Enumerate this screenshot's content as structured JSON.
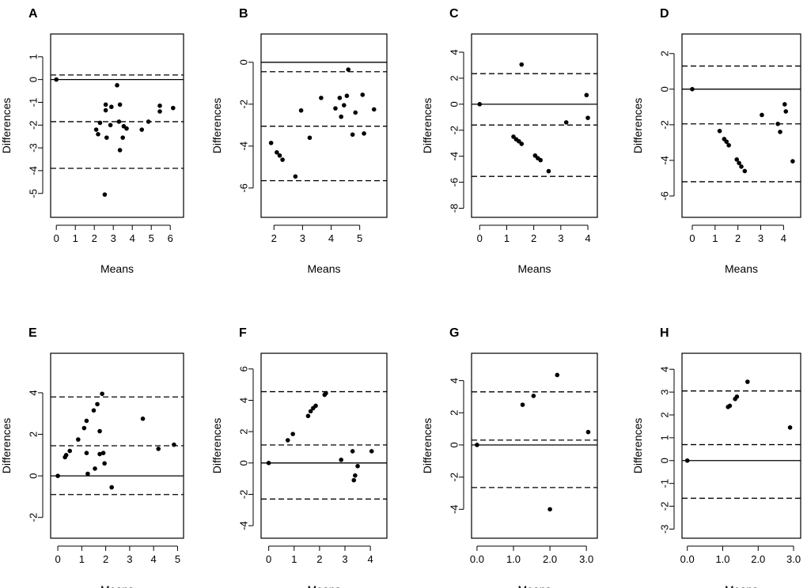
{
  "figure": {
    "colors": {
      "ink": "#000000",
      "background": "#ffffff"
    }
  },
  "chart_data": [
    {
      "panel": "A",
      "type": "scatter",
      "title": "",
      "xlabel": "Means",
      "ylabel": "Differences",
      "xlim": [
        -0.3,
        6.7
      ],
      "ylim": [
        -6.05,
        2.0
      ],
      "xticks": [
        0,
        1,
        2,
        3,
        4,
        5,
        6
      ],
      "xtick_labels": [
        "0",
        "1",
        "2",
        "3",
        "4",
        "5",
        "6"
      ],
      "yticks": [
        -5,
        -4,
        -3,
        -2,
        -1,
        0,
        1
      ],
      "ytick_labels": [
        "-5",
        "-4",
        "-3",
        "-2",
        "-1",
        "0",
        "1"
      ],
      "zero_line": 0,
      "mean_difference": -1.85,
      "limits_of_agreement": [
        -3.9,
        0.2
      ],
      "points": [
        [
          0,
          0
        ],
        [
          2.1,
          -2.2
        ],
        [
          2.2,
          -2.4
        ],
        [
          2.3,
          -1.9
        ],
        [
          2.6,
          -1.35
        ],
        [
          2.6,
          -1.1
        ],
        [
          2.65,
          -2.55
        ],
        [
          2.85,
          -2.0
        ],
        [
          2.9,
          -1.2
        ],
        [
          3.2,
          -0.25
        ],
        [
          3.3,
          -1.85
        ],
        [
          3.35,
          -3.1
        ],
        [
          3.35,
          -1.1
        ],
        [
          3.5,
          -2.55
        ],
        [
          3.55,
          -2.05
        ],
        [
          3.7,
          -2.15
        ],
        [
          4.5,
          -2.2
        ],
        [
          4.85,
          -1.85
        ],
        [
          5.45,
          -1.15
        ],
        [
          5.45,
          -1.4
        ],
        [
          6.15,
          -1.25
        ],
        [
          2.55,
          -5.05
        ]
      ]
    },
    {
      "panel": "B",
      "type": "scatter",
      "title": "",
      "xlabel": "Means",
      "ylabel": "Differences",
      "xlim": [
        1.55,
        5.95
      ],
      "ylim": [
        -7.4,
        1.35
      ],
      "xticks": [
        2,
        3,
        4,
        5
      ],
      "xtick_labels": [
        "2",
        "3",
        "4",
        "5"
      ],
      "yticks": [
        -6,
        -4,
        -2,
        0
      ],
      "ytick_labels": [
        "-6",
        "-4",
        "-2",
        "0"
      ],
      "zero_line": 0,
      "mean_difference": -3.05,
      "limits_of_agreement": [
        -5.65,
        -0.45
      ],
      "points": [
        [
          1.9,
          -3.85
        ],
        [
          2.1,
          -4.3
        ],
        [
          2.2,
          -4.45
        ],
        [
          2.3,
          -4.65
        ],
        [
          2.75,
          -5.45
        ],
        [
          2.95,
          -2.3
        ],
        [
          3.25,
          -3.6
        ],
        [
          3.65,
          -1.7
        ],
        [
          4.15,
          -2.2
        ],
        [
          4.3,
          -1.7
        ],
        [
          4.35,
          -2.6
        ],
        [
          4.45,
          -2.05
        ],
        [
          4.55,
          -1.6
        ],
        [
          4.6,
          -0.35
        ],
        [
          4.75,
          -3.45
        ],
        [
          4.85,
          -2.4
        ],
        [
          5.1,
          -1.55
        ],
        [
          5.15,
          -3.4
        ],
        [
          5.5,
          -2.25
        ]
      ]
    },
    {
      "panel": "C",
      "type": "scatter",
      "title": "",
      "xlabel": "Means",
      "ylabel": "Differences",
      "xlim": [
        -0.3,
        4.35
      ],
      "ylim": [
        -8.7,
        5.4
      ],
      "xticks": [
        0,
        1,
        2,
        3,
        4
      ],
      "xtick_labels": [
        "0",
        "1",
        "2",
        "3",
        "4"
      ],
      "yticks": [
        -8,
        -6,
        -4,
        -2,
        0,
        2,
        4
      ],
      "ytick_labels": [
        "-8",
        "-6",
        "-4",
        "-2",
        "0",
        "2",
        "4"
      ],
      "zero_line": 0,
      "mean_difference": -1.6,
      "limits_of_agreement": [
        -5.55,
        2.35
      ],
      "points": [
        [
          0,
          0
        ],
        [
          1.25,
          -2.5
        ],
        [
          1.35,
          -2.7
        ],
        [
          1.45,
          -2.85
        ],
        [
          1.55,
          -3.05
        ],
        [
          1.55,
          3.05
        ],
        [
          2.05,
          -3.95
        ],
        [
          2.15,
          -4.15
        ],
        [
          2.25,
          -4.3
        ],
        [
          2.55,
          -5.15
        ],
        [
          3.2,
          -1.4
        ],
        [
          3.95,
          0.7
        ],
        [
          4.0,
          -1.05
        ]
      ]
    },
    {
      "panel": "D",
      "type": "scatter",
      "title": "",
      "xlabel": "Means",
      "ylabel": "Differences",
      "xlim": [
        -0.45,
        4.75
      ],
      "ylim": [
        -7.2,
        3.1
      ],
      "xticks": [
        0,
        1,
        2,
        3,
        4
      ],
      "xtick_labels": [
        "0",
        "1",
        "2",
        "3",
        "4"
      ],
      "yticks": [
        -6,
        -4,
        -2,
        0,
        2
      ],
      "ytick_labels": [
        "-6",
        "-4",
        "-2",
        "0",
        "2"
      ],
      "zero_line": 0,
      "mean_difference": -1.95,
      "limits_of_agreement": [
        -5.2,
        1.3
      ],
      "points": [
        [
          0,
          0
        ],
        [
          1.2,
          -2.35
        ],
        [
          1.4,
          -2.8
        ],
        [
          1.5,
          -2.95
        ],
        [
          1.6,
          -3.15
        ],
        [
          1.95,
          -3.95
        ],
        [
          2.05,
          -4.15
        ],
        [
          2.15,
          -4.35
        ],
        [
          2.3,
          -4.6
        ],
        [
          3.05,
          -1.45
        ],
        [
          3.75,
          -1.95
        ],
        [
          3.85,
          -2.4
        ],
        [
          4.05,
          -0.85
        ],
        [
          4.1,
          -1.25
        ],
        [
          4.4,
          -4.05
        ]
      ]
    },
    {
      "panel": "E",
      "type": "scatter",
      "title": "",
      "xlabel": "Means",
      "ylabel": "Differences",
      "xlim": [
        -0.3,
        5.25
      ],
      "ylim": [
        -3.0,
        5.9
      ],
      "xticks": [
        0,
        1,
        2,
        3,
        4,
        5
      ],
      "xtick_labels": [
        "0",
        "1",
        "2",
        "3",
        "4",
        "5"
      ],
      "yticks": [
        -2,
        0,
        2,
        4
      ],
      "ytick_labels": [
        "-2",
        "0",
        "2",
        "4"
      ],
      "zero_line": 0,
      "mean_difference": 1.45,
      "limits_of_agreement": [
        -0.9,
        3.8
      ],
      "points": [
        [
          0,
          0
        ],
        [
          0.3,
          0.9
        ],
        [
          0.35,
          1.0
        ],
        [
          0.5,
          1.2
        ],
        [
          0.85,
          1.75
        ],
        [
          1.1,
          2.3
        ],
        [
          1.2,
          2.65
        ],
        [
          1.2,
          1.1
        ],
        [
          1.25,
          0.1
        ],
        [
          1.5,
          3.15
        ],
        [
          1.55,
          0.35
        ],
        [
          1.65,
          3.45
        ],
        [
          1.75,
          2.15
        ],
        [
          1.75,
          1.05
        ],
        [
          1.85,
          3.95
        ],
        [
          1.9,
          1.1
        ],
        [
          1.95,
          0.6
        ],
        [
          2.25,
          -0.55
        ],
        [
          3.55,
          2.75
        ],
        [
          4.2,
          1.3
        ],
        [
          4.85,
          1.5
        ]
      ]
    },
    {
      "panel": "F",
      "type": "scatter",
      "title": "",
      "xlabel": "Means",
      "ylabel": "Differences",
      "xlim": [
        -0.3,
        4.65
      ],
      "ylim": [
        -4.8,
        7.0
      ],
      "xticks": [
        0,
        1,
        2,
        3,
        4
      ],
      "xtick_labels": [
        "0",
        "1",
        "2",
        "3",
        "4"
      ],
      "yticks": [
        -4,
        -2,
        0,
        2,
        4,
        6
      ],
      "ytick_labels": [
        "-4",
        "-2",
        "0",
        "2",
        "4",
        "6"
      ],
      "zero_line": 0,
      "mean_difference": 1.15,
      "limits_of_agreement": [
        -2.3,
        4.55
      ],
      "points": [
        [
          0,
          0
        ],
        [
          0.75,
          1.45
        ],
        [
          0.95,
          1.85
        ],
        [
          1.55,
          3.0
        ],
        [
          1.65,
          3.3
        ],
        [
          1.75,
          3.5
        ],
        [
          1.85,
          3.65
        ],
        [
          2.2,
          4.35
        ],
        [
          2.25,
          4.45
        ],
        [
          2.85,
          0.2
        ],
        [
          3.3,
          0.75
        ],
        [
          3.35,
          -1.1
        ],
        [
          3.4,
          -0.8
        ],
        [
          3.5,
          -0.2
        ],
        [
          4.05,
          0.75
        ]
      ]
    },
    {
      "panel": "G",
      "type": "scatter",
      "title": "",
      "xlabel": "Means",
      "ylabel": "Differences",
      "xlim": [
        -0.15,
        3.3
      ],
      "ylim": [
        -5.8,
        5.7
      ],
      "xticks": [
        0,
        1,
        2,
        3
      ],
      "xtick_labels": [
        "0.0",
        "1.0",
        "2.0",
        "3.0"
      ],
      "yticks": [
        -4,
        -2,
        0,
        2,
        4
      ],
      "ytick_labels": [
        "-4",
        "-2",
        "0",
        "2",
        "4"
      ],
      "zero_line": 0,
      "mean_difference": 0.3,
      "limits_of_agreement": [
        -2.65,
        3.3
      ],
      "points": [
        [
          0,
          0
        ],
        [
          1.25,
          2.5
        ],
        [
          1.55,
          3.05
        ],
        [
          2.0,
          -4.0
        ],
        [
          2.2,
          4.35
        ],
        [
          3.05,
          0.8
        ]
      ]
    },
    {
      "panel": "H",
      "type": "scatter",
      "title": "",
      "xlabel": "Means",
      "ylabel": "Differences",
      "xlim": [
        -0.15,
        3.2
      ],
      "ylim": [
        -3.4,
        4.7
      ],
      "xticks": [
        0,
        1,
        2,
        3
      ],
      "xtick_labels": [
        "0.0",
        "1.0",
        "2.0",
        "3.0"
      ],
      "yticks": [
        -3,
        -2,
        -1,
        0,
        1,
        2,
        3,
        4
      ],
      "ytick_labels": [
        "-3",
        "-2",
        "-1",
        "0",
        "1",
        "2",
        "3",
        "4"
      ],
      "zero_line": 0,
      "mean_difference": 0.7,
      "limits_of_agreement": [
        -1.65,
        3.05
      ],
      "points": [
        [
          0,
          0
        ],
        [
          1.15,
          2.35
        ],
        [
          1.2,
          2.4
        ],
        [
          1.35,
          2.7
        ],
        [
          1.4,
          2.8
        ],
        [
          1.7,
          3.45
        ],
        [
          2.9,
          1.45
        ]
      ]
    }
  ]
}
